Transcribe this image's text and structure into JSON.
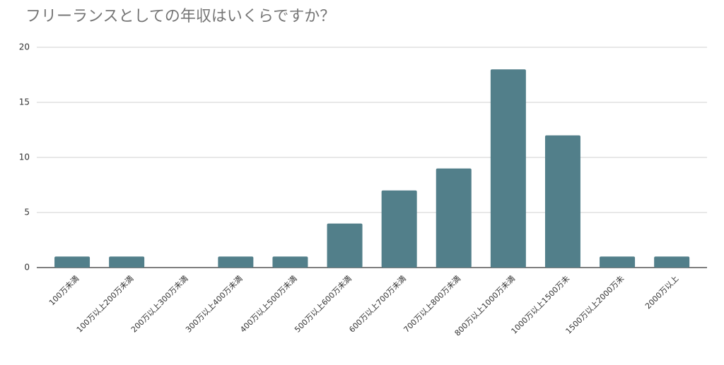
{
  "chart_data": {
    "type": "bar",
    "title": "フリーランスとしての年収はいくらですか？",
    "categories": [
      "100万未満",
      "100万以上200万未満",
      "200万以上300万未満",
      "300万以上400万未満",
      "400万以上500万未満",
      "500万以上600万未満",
      "600万以上700万未満",
      "700万以上800万未満",
      "800万以上1000万未満",
      "1000万以上1500万未",
      "1500万以上2000万未",
      "2000万以上"
    ],
    "values": [
      1,
      1,
      0,
      1,
      1,
      4,
      7,
      9,
      18,
      12,
      1,
      1
    ],
    "color": "#527f8a",
    "ylim": [
      0,
      20
    ],
    "yticks": [
      0,
      5,
      10,
      15,
      20
    ],
    "grid": true
  }
}
